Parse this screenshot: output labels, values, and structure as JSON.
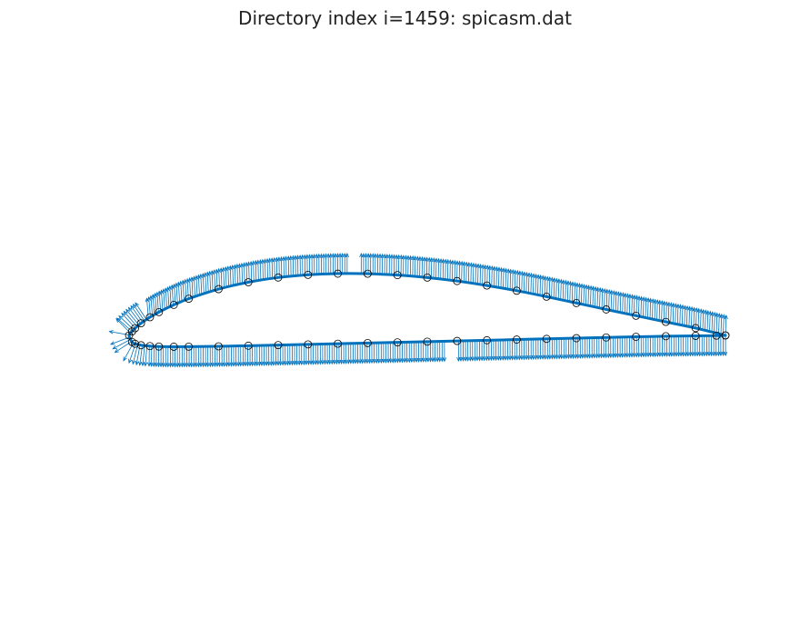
{
  "title": "Directory index i=1459: spicasm.dat",
  "colors": {
    "airfoil": "#0072bd",
    "normals": "#0072bd",
    "points": "#000000",
    "background": "#ffffff"
  },
  "chart_data": {
    "type": "scatter",
    "title": "Directory index i=1459: spicasm.dat",
    "xlabel": "",
    "ylabel": "",
    "grid": false,
    "axes_visible": false,
    "xlim": [
      -0.05,
      1.05
    ],
    "ylim": [
      -0.6,
      0.6
    ],
    "series": [
      {
        "role": "upper-surface",
        "x": [
          1.0,
          0.95,
          0.9,
          0.85,
          0.8,
          0.75,
          0.7,
          0.65,
          0.6,
          0.55,
          0.5,
          0.45,
          0.4,
          0.35,
          0.3,
          0.25,
          0.2,
          0.15,
          0.1,
          0.075,
          0.05,
          0.035,
          0.02,
          0.01,
          0.005,
          0.0
        ],
        "y": [
          0.0,
          0.0106,
          0.0196,
          0.0285,
          0.0376,
          0.0469,
          0.0561,
          0.0647,
          0.0722,
          0.0787,
          0.0837,
          0.0873,
          0.0893,
          0.0894,
          0.0877,
          0.0838,
          0.077,
          0.067,
          0.0531,
          0.0442,
          0.0337,
          0.0263,
          0.0176,
          0.0104,
          0.0058,
          0.0
        ]
      },
      {
        "role": "lower-surface",
        "x": [
          0.0,
          0.005,
          0.01,
          0.02,
          0.035,
          0.05,
          0.075,
          0.1,
          0.15,
          0.2,
          0.25,
          0.3,
          0.35,
          0.4,
          0.45,
          0.5,
          0.55,
          0.6,
          0.65,
          0.7,
          0.75,
          0.8,
          0.85,
          0.9,
          0.95,
          0.985,
          1.0
        ],
        "y": [
          0.0,
          -0.0095,
          -0.0121,
          -0.0142,
          -0.0155,
          -0.0161,
          -0.0164,
          -0.0163,
          -0.0158,
          -0.0149,
          -0.014,
          -0.013,
          -0.012,
          -0.011,
          -0.01,
          -0.009,
          -0.008,
          -0.007,
          -0.006,
          -0.005,
          -0.004,
          -0.003,
          -0.002,
          -0.0012,
          -0.0006,
          -0.0003,
          0.0
        ]
      }
    ]
  }
}
